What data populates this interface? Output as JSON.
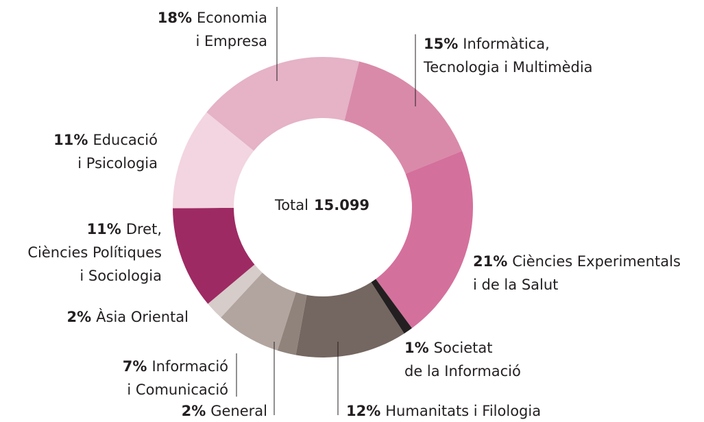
{
  "chart_data": {
    "type": "donut",
    "categories": [
      [
        "Informàtica,",
        "Tecnologia i Multimèdia"
      ],
      [
        "Ciències Experimentals",
        "i de la Salut"
      ],
      [
        "Societat",
        "de la Informació"
      ],
      [
        "Humanitats i Filologia"
      ],
      [
        "General"
      ],
      [
        "Informació",
        "i Comunicació"
      ],
      [
        "Àsia Oriental"
      ],
      [
        "Dret,",
        "Ciències Polítiques",
        "i Sociologia"
      ],
      [
        "Educació",
        "i Psicologia"
      ],
      [
        "Economia",
        "i Empresa"
      ]
    ],
    "values": [
      15,
      21,
      1,
      12,
      2,
      7,
      2,
      11,
      11,
      18
    ],
    "value_labels": [
      "15%",
      "21%",
      "1%",
      "12%",
      "2%",
      "7%",
      "2%",
      "11%",
      "11%",
      "18%"
    ],
    "colors": [
      "#d98aa9",
      "#d4709c",
      "#231f20",
      "#746660",
      "#8f837b",
      "#b2a59f",
      "#d6ccc9",
      "#9e2a63",
      "#f2d5e0",
      "#e5b2c6"
    ],
    "center_text": "Total",
    "center_value_label": "15.099"
  }
}
